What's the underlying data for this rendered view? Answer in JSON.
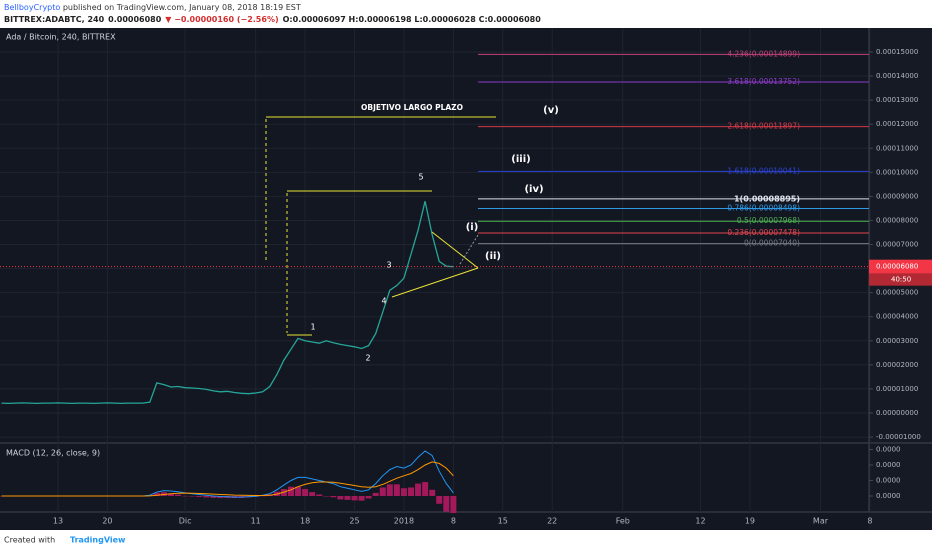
{
  "header": {
    "author": "BellboyCrypto",
    "published": " published on TradingView.com, January 08, 2018 18:19 EST",
    "symbol": "BITTREX:ADABTC, 240",
    "last": "0.00006080",
    "change": "▼ −0.00000160 (−2.56%)",
    "ohlc": "O:0.00006097 H:0.00006198 L:0.00006028 C:0.00006080"
  },
  "chart_data": {
    "type": "line",
    "title": "Ada / Bitcoin, 240, BITTREX",
    "categories": [
      null,
      null,
      null,
      null,
      null,
      null,
      null,
      null,
      "13",
      null,
      null,
      null,
      null,
      null,
      null,
      "20",
      null,
      null,
      null,
      null,
      null,
      null,
      null,
      null,
      null,
      null,
      "Dic",
      null,
      null,
      null,
      null,
      null,
      null,
      null,
      null,
      null,
      "11",
      null,
      null,
      null,
      null,
      null,
      null,
      "18",
      null,
      null,
      null,
      null,
      null,
      null,
      "25",
      null,
      null,
      null,
      null,
      null,
      null,
      "2018",
      null,
      null,
      null,
      null,
      null,
      null,
      "8",
      null,
      null,
      null,
      null,
      null,
      null,
      "15",
      null,
      null,
      null,
      null,
      null,
      null,
      "22",
      null,
      null,
      null,
      null,
      null,
      null,
      null,
      null,
      null,
      "Feb",
      null,
      null,
      null,
      null,
      null,
      null,
      null,
      null,
      null,
      null,
      "12",
      null,
      null,
      null,
      null,
      null,
      null,
      "19",
      null,
      null,
      null,
      null,
      null,
      null,
      null,
      null,
      null,
      "Mar",
      null,
      null,
      null,
      null,
      null,
      null,
      "8"
    ],
    "series": [
      {
        "color": "#26a69a",
        "values": [
          4.1e-06,
          4e-06,
          4.1e-06,
          4.2e-06,
          4.1e-06,
          4e-06,
          4.1e-06,
          4.1e-06,
          4.2e-06,
          4.1e-06,
          4e-06,
          4.1e-06,
          4.1e-06,
          4e-06,
          4.1e-06,
          4.2e-06,
          4.1e-06,
          4e-06,
          4.1e-06,
          4.1e-06,
          4.1e-06,
          4.5e-06,
          1.25e-05,
          1.18e-05,
          1.08e-05,
          1.1e-05,
          1.05e-05,
          1.04e-05,
          1.02e-05,
          9.8e-06,
          9.2e-06,
          8.8e-06,
          9e-06,
          8.5e-06,
          8.2e-06,
          8e-06,
          8.3e-06,
          8.8e-06,
          1.1e-05,
          1.6e-05,
          2.2e-05,
          2.65e-05,
          3.1e-05,
          3e-05,
          2.95e-05,
          2.9e-05,
          3e-05,
          2.92e-05,
          2.85e-05,
          2.8e-05,
          2.75e-05,
          2.68e-05,
          2.8e-05,
          3.3e-05,
          4.2e-05,
          5.1e-05,
          5.3e-05,
          5.6e-05,
          6.6e-05,
          7.6e-05,
          8.8e-05,
          7.4e-05,
          6.3e-05,
          6.1e-05,
          6.08e-05,
          null,
          null,
          null,
          null,
          null,
          null,
          null,
          null,
          null,
          null,
          null,
          null,
          null,
          null,
          null,
          null,
          null,
          null,
          null,
          null,
          null,
          null,
          null,
          null,
          null,
          null,
          null,
          null,
          null,
          null,
          null,
          null,
          null,
          null,
          null,
          null,
          null,
          null,
          null,
          null,
          null,
          null,
          null,
          null,
          null,
          null,
          null,
          null,
          null,
          null,
          null,
          null,
          null,
          null,
          null,
          null,
          null,
          null,
          null
        ]
      }
    ],
    "ylim": [
      -1.205e-05,
      0.00015997
    ],
    "yticks": [
      {
        "value": 0.00015,
        "label": "0.00015000"
      },
      {
        "value": 0.00014,
        "label": "0.00014000"
      },
      {
        "value": 0.00013,
        "label": "0.00013000"
      },
      {
        "value": 0.00012,
        "label": "0.00012000"
      },
      {
        "value": 0.00011,
        "label": "0.00011000"
      },
      {
        "value": 0.0001,
        "label": "0.00010000"
      },
      {
        "value": 9e-05,
        "label": "0.00009000"
      },
      {
        "value": 8e-05,
        "label": "0.00008000"
      },
      {
        "value": 7e-05,
        "label": "0.00007000"
      },
      {
        "value": 6e-05,
        "label": "0.00006000"
      },
      {
        "value": 5e-05,
        "label": "0.00005000"
      },
      {
        "value": 4e-05,
        "label": "0.00004000"
      },
      {
        "value": 3e-05,
        "label": "0.00003000"
      },
      {
        "value": 2e-05,
        "label": "0.00002000"
      },
      {
        "value": 1e-05,
        "label": "0.00001000"
      },
      {
        "value": 0,
        "label": "0.00000000"
      },
      {
        "value": -1e-05,
        "label": "-0.00001000"
      }
    ],
    "grid": true,
    "last_price": {
      "value": 6.08e-05,
      "label": "0.00006080"
    },
    "countdown": "40:50",
    "fib_levels": [
      {
        "value": 0.00014899,
        "label": "4.236(0.00014899)",
        "color": "#c2417a"
      },
      {
        "value": 0.00013752,
        "label": "3.618(0.00013752)",
        "color": "#8e3bc9"
      },
      {
        "value": 0.00011897,
        "label": "2.618(0.00011897)",
        "color": "#d63a48"
      },
      {
        "value": 0.00010041,
        "label": "1.618(0.00010041)",
        "color": "#2b43d6"
      },
      {
        "value": 8.895e-05,
        "label": "1(0.00008895)",
        "color": "#e0e3eb"
      },
      {
        "value": 8.498e-05,
        "label": "0.786(0.00008498)",
        "color": "#2f9be6"
      },
      {
        "value": 7.968e-05,
        "label": "0.5(0.00007968)",
        "color": "#4caf50"
      },
      {
        "value": 7.478e-05,
        "label": "0.236(0.00007478)",
        "color": "#e5464f"
      },
      {
        "value": 7.04e-05,
        "label": "0(0.00007040)",
        "color": "#787b86"
      }
    ],
    "annotations": [
      "OBJETIVO LARGO PLAZO",
      "(v)",
      "(iii)",
      "(iv)",
      "(i)",
      "(ii)",
      "1",
      "2",
      "3",
      "4",
      "5"
    ],
    "macd": {
      "title": "MACD (12, 26, close, 9)",
      "ylim": [
        -1.03e-06,
        3.35e-06
      ],
      "yticks": [
        {
          "value": 3e-06,
          "label": "0.0000"
        },
        {
          "value": 2e-06,
          "label": "0.0000"
        },
        {
          "value": 1e-06,
          "label": "0.0000"
        },
        {
          "value": 0,
          "label": "0.0000"
        }
      ],
      "histogram_color": "#a3195b",
      "series": [
        {
          "color": "#2196f3",
          "values": [
            0,
            0,
            0,
            0,
            0,
            0,
            0,
            0,
            0,
            0,
            0,
            0,
            0,
            0,
            0,
            0,
            0,
            0,
            0,
            0,
            0,
            5e-08,
            2.5e-07,
            3.5e-07,
            3.2e-07,
            2.7e-07,
            2e-07,
            1.5e-07,
            1e-07,
            5e-08,
            0,
            -3e-08,
            -5e-08,
            -7e-08,
            -7e-08,
            -5e-08,
            -2e-08,
            5e-08,
            1.5e-07,
            4e-07,
            7e-07,
            1e-06,
            1.2e-06,
            1.2e-06,
            1.1e-06,
            1e-06,
            9e-07,
            8e-07,
            6e-07,
            5e-07,
            4e-07,
            3e-07,
            4e-07,
            8e-07,
            1.3e-06,
            1.7e-06,
            1.9e-06,
            1.8e-06,
            2e-06,
            2.5e-06,
            2.9e-06,
            2.6e-06,
            1.6e-06,
            8e-07,
            2e-07,
            null,
            null,
            null,
            null,
            null,
            null,
            null,
            null,
            null,
            null,
            null,
            null,
            null,
            null,
            null,
            null,
            null,
            null,
            null,
            null,
            null,
            null,
            null,
            null,
            null,
            null,
            null,
            null,
            null,
            null,
            null,
            null,
            null,
            null,
            null,
            null,
            null,
            null,
            null,
            null,
            null,
            null,
            null,
            null,
            null,
            null,
            null,
            null,
            null,
            null,
            null,
            null,
            null,
            null,
            null,
            null,
            null,
            null,
            null
          ]
        },
        {
          "color": "#ff9800",
          "values": [
            0,
            0,
            0,
            0,
            0,
            0,
            0,
            0,
            0,
            0,
            0,
            0,
            0,
            0,
            0,
            0,
            0,
            0,
            0,
            0,
            0,
            1e-08,
            5e-08,
            1e-07,
            1.5e-07,
            1.8e-07,
            1.9e-07,
            1.8e-07,
            1.6e-07,
            1.4e-07,
            1.2e-07,
            1e-07,
            8e-08,
            6e-08,
            5e-08,
            4e-08,
            3e-08,
            3e-08,
            5e-08,
            1.2e-07,
            2.5e-07,
            4e-07,
            6e-07,
            7.5e-07,
            8.5e-07,
            9e-07,
            9e-07,
            8.8e-07,
            8.2e-07,
            7.5e-07,
            6.8e-07,
            6e-07,
            5.6e-07,
            6e-07,
            7.5e-07,
            9.5e-07,
            1.15e-06,
            1.3e-06,
            1.45e-06,
            1.7e-06,
            2e-06,
            2.2e-06,
            2.1e-06,
            1.8e-06,
            1.3e-06,
            null,
            null,
            null,
            null,
            null,
            null,
            null,
            null,
            null,
            null,
            null,
            null,
            null,
            null,
            null,
            null,
            null,
            null,
            null,
            null,
            null,
            null,
            null,
            null,
            null,
            null,
            null,
            null,
            null,
            null,
            null,
            null,
            null,
            null,
            null,
            null,
            null,
            null,
            null,
            null,
            null,
            null,
            null,
            null,
            null,
            null,
            null,
            null,
            null,
            null,
            null,
            null,
            null,
            null,
            null,
            null,
            null,
            null,
            null
          ]
        }
      ]
    }
  },
  "footer": {
    "created": "Created with",
    "brand": "TradingView"
  }
}
